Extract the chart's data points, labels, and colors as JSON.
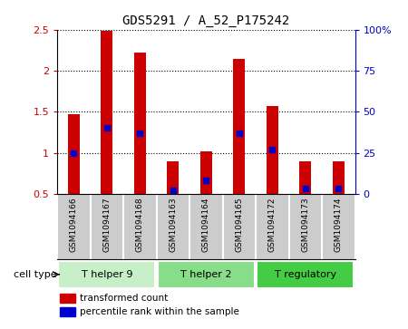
{
  "title": "GDS5291 / A_52_P175242",
  "samples": [
    "GSM1094166",
    "GSM1094167",
    "GSM1094168",
    "GSM1094163",
    "GSM1094164",
    "GSM1094165",
    "GSM1094172",
    "GSM1094173",
    "GSM1094174"
  ],
  "bar_values": [
    1.47,
    2.49,
    2.22,
    0.9,
    1.02,
    2.14,
    1.57,
    0.9,
    0.9
  ],
  "percentile_values": [
    25,
    40,
    37,
    2,
    8,
    37,
    27,
    3,
    3
  ],
  "bar_bottom": 0.5,
  "ylim": [
    0.5,
    2.5
  ],
  "yticks": [
    0.5,
    1.0,
    1.5,
    2.0,
    2.5
  ],
  "ytick_labels": [
    "0.5",
    "1",
    "1.5",
    "2",
    "2.5"
  ],
  "right_ylim": [
    0,
    100
  ],
  "right_yticks": [
    0,
    25,
    50,
    75,
    100
  ],
  "right_ytick_labels": [
    "0",
    "25",
    "50",
    "75",
    "100%"
  ],
  "bar_color": "#cc0000",
  "percentile_color": "#0000cc",
  "cell_types": [
    {
      "label": "T helper 9",
      "start": 0,
      "end": 3,
      "color": "#c8f0c8"
    },
    {
      "label": "T helper 2",
      "start": 3,
      "end": 6,
      "color": "#88dd88"
    },
    {
      "label": "T regulatory",
      "start": 6,
      "end": 9,
      "color": "#44cc44"
    }
  ],
  "cell_type_label": "cell type",
  "legend_items": [
    {
      "label": "transformed count",
      "color": "#cc0000"
    },
    {
      "label": "percentile rank within the sample",
      "color": "#0000cc"
    }
  ],
  "bar_width": 0.35,
  "background_color": "#ffffff",
  "sample_bg_color": "#cccccc"
}
